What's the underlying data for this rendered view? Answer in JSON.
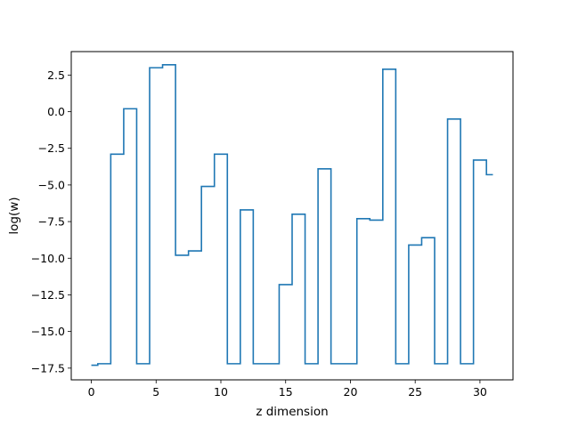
{
  "chart_data": {
    "type": "line",
    "drawstyle": "steps-mid",
    "xlabel": "z dimension",
    "ylabel": "log(w)",
    "xlim": [
      -1.55,
      32.55
    ],
    "ylim": [
      -18.3,
      4.1
    ],
    "xticks": [
      0,
      5,
      10,
      15,
      20,
      25,
      30
    ],
    "yticks": [
      -17.5,
      -15.0,
      -12.5,
      -10.0,
      -7.5,
      -5.0,
      -2.5,
      0.0,
      2.5
    ],
    "ytick_labels": [
      "−17.5",
      "−15.0",
      "−12.5",
      "−10.0",
      "−7.5",
      "−5.0",
      "−2.5",
      "0.0",
      "2.5"
    ],
    "grid": false,
    "color": "#1f77b4",
    "series": [
      {
        "x": [
          0,
          1,
          2,
          3,
          4,
          5,
          6,
          7,
          8,
          9,
          10,
          11,
          12,
          13,
          14,
          15,
          16,
          17,
          18,
          19,
          20,
          21,
          22,
          23,
          24,
          25,
          26,
          27,
          28,
          29,
          30,
          31
        ],
        "values": [
          -17.3,
          -17.2,
          -2.9,
          0.2,
          -17.2,
          3.0,
          3.2,
          -9.8,
          -9.5,
          -5.1,
          -2.9,
          -17.2,
          -6.7,
          -17.2,
          -17.2,
          -11.8,
          -7.0,
          -17.2,
          -3.9,
          -17.2,
          -17.2,
          -7.3,
          -7.4,
          2.9,
          -17.2,
          -9.1,
          -8.6,
          -17.2,
          -0.5,
          -17.2,
          -3.3,
          -4.3
        ]
      }
    ]
  }
}
